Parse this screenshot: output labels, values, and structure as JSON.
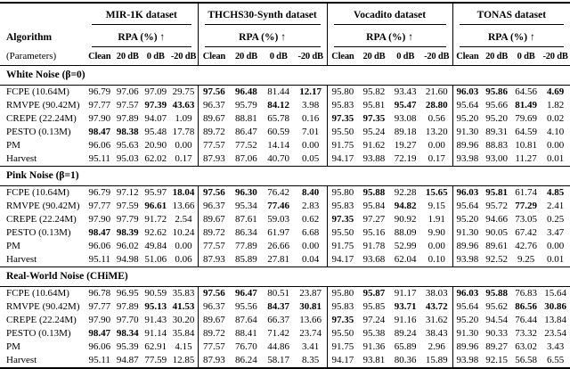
{
  "table": {
    "algorithm_label": "Algorithm",
    "parameters_label": "(Parameters)",
    "metric_label": "RPA (%) ↑",
    "datasets": [
      "MIR-1K dataset",
      "THCHS30-Synth dataset",
      "Vocadito dataset",
      "TONAS dataset"
    ],
    "conditions": [
      "Clean",
      "20 dB",
      "0 dB",
      "-20 dB"
    ],
    "sections": [
      {
        "title": "White Noise (β=0)",
        "rows": [
          {
            "algorithm": "FCPE (10.64M)",
            "values": [
              "96.79",
              "97.06",
              "97.09",
              "29.75",
              "97.56",
              "96.48",
              "81.44",
              "12.17",
              "95.80",
              "95.82",
              "93.43",
              "21.60",
              "96.03",
              "95.86",
              "64.56",
              "4.69"
            ],
            "bold": [
              4,
              5,
              7,
              12,
              13,
              15
            ]
          },
          {
            "algorithm": "RMVPE (90.42M)",
            "values": [
              "97.77",
              "97.57",
              "97.39",
              "43.63",
              "96.37",
              "95.79",
              "84.12",
              "3.98",
              "95.83",
              "95.81",
              "95.47",
              "28.80",
              "95.64",
              "95.66",
              "81.49",
              "1.82"
            ],
            "bold": [
              2,
              3,
              6,
              10,
              11,
              14
            ]
          },
          {
            "algorithm": "CREPE (22.24M)",
            "values": [
              "97.90",
              "97.89",
              "94.07",
              "1.09",
              "89.67",
              "88.81",
              "65.78",
              "0.16",
              "97.35",
              "97.35",
              "93.08",
              "0.56",
              "95.20",
              "95.20",
              "79.69",
              "0.02"
            ],
            "bold": [
              8,
              9
            ]
          },
          {
            "algorithm": "PESTO (0.13M)",
            "values": [
              "98.47",
              "98.38",
              "95.48",
              "17.78",
              "89.72",
              "86.47",
              "60.59",
              "7.01",
              "95.50",
              "95.24",
              "89.18",
              "13.20",
              "91.30",
              "89.31",
              "64.59",
              "4.10"
            ],
            "bold": [
              0,
              1
            ]
          },
          {
            "algorithm": "PM",
            "values": [
              "96.06",
              "95.63",
              "20.90",
              "0.00",
              "77.57",
              "77.52",
              "14.14",
              "0.00",
              "91.75",
              "91.62",
              "19.27",
              "0.00",
              "89.96",
              "88.83",
              "10.81",
              "0.00"
            ],
            "bold": []
          },
          {
            "algorithm": "Harvest",
            "values": [
              "95.11",
              "95.03",
              "62.02",
              "0.17",
              "87.93",
              "87.06",
              "40.70",
              "0.05",
              "94.17",
              "93.88",
              "72.19",
              "0.17",
              "93.98",
              "93.00",
              "11.27",
              "0.01"
            ],
            "bold": []
          }
        ]
      },
      {
        "title": "Pink Noise (β=1)",
        "rows": [
          {
            "algorithm": "FCPE (10.64M)",
            "values": [
              "96.79",
              "97.12",
              "95.97",
              "18.04",
              "97.56",
              "96.30",
              "76.42",
              "8.40",
              "95.80",
              "95.88",
              "92.28",
              "15.65",
              "96.03",
              "95.81",
              "61.74",
              "4.85"
            ],
            "bold": [
              3,
              4,
              5,
              7,
              9,
              11,
              12,
              13,
              15
            ]
          },
          {
            "algorithm": "RMVPE (90.42M)",
            "values": [
              "97.77",
              "97.59",
              "96.61",
              "13.66",
              "96.37",
              "95.34",
              "77.46",
              "2.83",
              "95.83",
              "95.84",
              "94.82",
              "9.15",
              "95.64",
              "95.72",
              "77.29",
              "2.41"
            ],
            "bold": [
              2,
              6,
              10,
              14
            ]
          },
          {
            "algorithm": "CREPE (22.24M)",
            "values": [
              "97.90",
              "97.79",
              "91.72",
              "2.54",
              "89.67",
              "87.61",
              "59.03",
              "0.62",
              "97.35",
              "97.27",
              "90.92",
              "1.91",
              "95.20",
              "94.66",
              "73.05",
              "0.25"
            ],
            "bold": [
              8
            ]
          },
          {
            "algorithm": "PESTO (0.13M)",
            "values": [
              "98.47",
              "98.39",
              "92.62",
              "10.24",
              "89.72",
              "86.34",
              "61.97",
              "6.68",
              "95.50",
              "95.16",
              "88.09",
              "9.90",
              "91.30",
              "90.05",
              "67.42",
              "3.47"
            ],
            "bold": [
              0,
              1
            ]
          },
          {
            "algorithm": "PM",
            "values": [
              "96.06",
              "96.02",
              "49.84",
              "0.00",
              "77.57",
              "77.89",
              "26.66",
              "0.00",
              "91.75",
              "91.78",
              "52.99",
              "0.00",
              "89.96",
              "89.61",
              "42.76",
              "0.00"
            ],
            "bold": []
          },
          {
            "algorithm": "Harvest",
            "values": [
              "95.11",
              "94.98",
              "51.06",
              "0.06",
              "87.93",
              "85.89",
              "27.81",
              "0.04",
              "94.17",
              "93.68",
              "62.04",
              "0.10",
              "93.98",
              "92.52",
              "9.25",
              "0.01"
            ],
            "bold": []
          }
        ]
      },
      {
        "title": "Real-World Noise (CHiME)",
        "rows": [
          {
            "algorithm": "FCPE (10.64M)",
            "values": [
              "96.78",
              "96.95",
              "90.59",
              "35.83",
              "97.56",
              "96.47",
              "80.51",
              "23.87",
              "95.80",
              "95.87",
              "91.17",
              "38.03",
              "96.03",
              "95.88",
              "76.83",
              "15.64"
            ],
            "bold": [
              4,
              5,
              9,
              12,
              13
            ]
          },
          {
            "algorithm": "RMVPE (90.42M)",
            "values": [
              "97.77",
              "97.89",
              "95.13",
              "41.53",
              "96.37",
              "95.56",
              "84.37",
              "30.81",
              "95.83",
              "95.85",
              "93.71",
              "43.72",
              "95.64",
              "95.62",
              "86.56",
              "30.86"
            ],
            "bold": [
              2,
              3,
              6,
              7,
              10,
              11,
              14,
              15
            ]
          },
          {
            "algorithm": "CREPE (22.24M)",
            "values": [
              "97.90",
              "97.70",
              "91.43",
              "30.20",
              "89.67",
              "87.64",
              "66.37",
              "13.66",
              "97.35",
              "97.24",
              "91.16",
              "31.62",
              "95.20",
              "94.54",
              "76.44",
              "13.84"
            ],
            "bold": [
              8
            ]
          },
          {
            "algorithm": "PESTO (0.13M)",
            "values": [
              "98.47",
              "98.34",
              "91.14",
              "35.84",
              "89.72",
              "88.41",
              "71.42",
              "23.74",
              "95.50",
              "95.38",
              "89.24",
              "38.43",
              "91.30",
              "90.33",
              "73.32",
              "23.54"
            ],
            "bold": [
              0,
              1
            ]
          },
          {
            "algorithm": "PM",
            "values": [
              "96.06",
              "95.39",
              "62.91",
              "4.15",
              "77.57",
              "76.70",
              "44.86",
              "3.41",
              "91.75",
              "91.36",
              "65.89",
              "2.96",
              "89.96",
              "89.27",
              "63.02",
              "3.43"
            ],
            "bold": []
          },
          {
            "algorithm": "Harvest",
            "values": [
              "95.11",
              "94.87",
              "77.59",
              "12.85",
              "87.93",
              "86.24",
              "58.17",
              "8.35",
              "94.17",
              "93.81",
              "80.36",
              "15.89",
              "93.98",
              "92.15",
              "56.58",
              "6.55"
            ],
            "bold": []
          }
        ]
      }
    ]
  }
}
